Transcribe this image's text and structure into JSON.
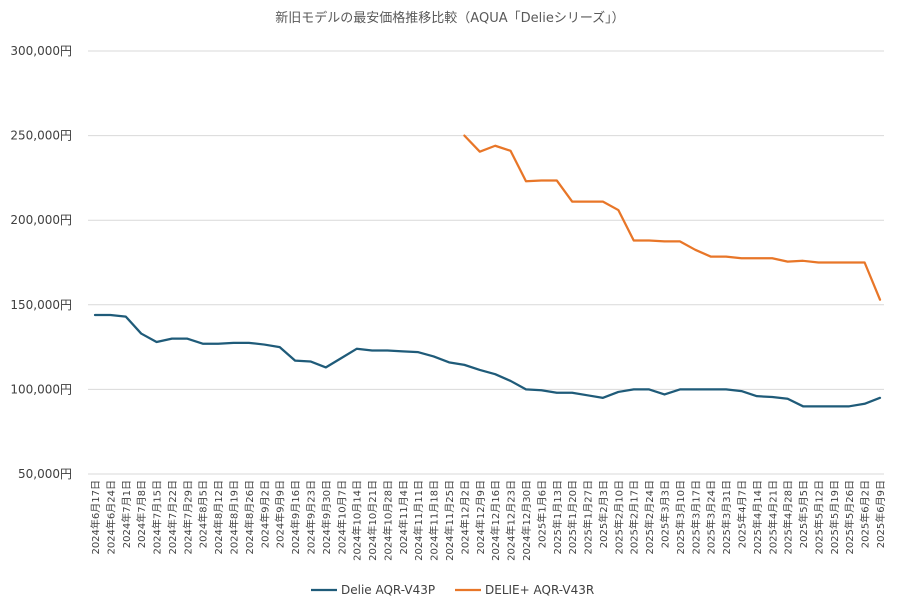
{
  "chart_data": {
    "type": "line",
    "title": "新旧モデルの最安価格推移比較（AQUA「Delieシリーズ」）",
    "ylim": [
      50000,
      300000
    ],
    "yticks": [
      50000,
      100000,
      150000,
      200000,
      250000,
      300000
    ],
    "ytick_labels": [
      "50,000円",
      "100,000円",
      "150,000円",
      "200,000円",
      "250,000円",
      "300,000円"
    ],
    "grid": true,
    "legend_position": "bottom",
    "categories": [
      "2024年6月17日",
      "2024年6月24日",
      "2024年7月1日",
      "2024年7月8日",
      "2024年7月15日",
      "2024年7月22日",
      "2024年7月29日",
      "2024年8月5日",
      "2024年8月12日",
      "2024年8月19日",
      "2024年8月26日",
      "2024年9月2日",
      "2024年9月9日",
      "2024年9月16日",
      "2024年9月23日",
      "2024年9月30日",
      "2024年10月7日",
      "2024年10月14日",
      "2024年10月21日",
      "2024年10月28日",
      "2024年11月4日",
      "2024年11月11日",
      "2024年11月18日",
      "2024年11月25日",
      "2024年12月2日",
      "2024年12月9日",
      "2024年12月16日",
      "2024年12月23日",
      "2024年12月30日",
      "2025年1月6日",
      "2025年1月13日",
      "2025年1月20日",
      "2025年1月27日",
      "2025年2月3日",
      "2025年2月10日",
      "2025年2月17日",
      "2025年2月24日",
      "2025年3月3日",
      "2025年3月10日",
      "2025年3月17日",
      "2025年3月24日",
      "2025年3月31日",
      "2025年4月7日",
      "2025年4月14日",
      "2025年4月21日",
      "2025年4月28日",
      "2025年5月5日",
      "2025年5月12日",
      "2025年5月19日",
      "2025年5月26日",
      "2025年6月2日",
      "2025年6月9日"
    ],
    "series": [
      {
        "name": "Delie AQR-V43P",
        "color": "#1f5b79",
        "values": [
          144000,
          144000,
          143000,
          133000,
          128000,
          130000,
          130000,
          127000,
          127000,
          127500,
          127500,
          126500,
          125000,
          117000,
          116500,
          113000,
          118500,
          124000,
          123000,
          123000,
          122500,
          122000,
          119500,
          116000,
          114500,
          111500,
          109000,
          105000,
          100000,
          99500,
          98000,
          98000,
          96500,
          95000,
          98500,
          100000,
          100000,
          97000,
          100000,
          100000,
          100000,
          100000,
          99000,
          96000,
          95500,
          94500,
          90000,
          90000,
          90000,
          90000,
          91500,
          95000
        ]
      },
      {
        "name": "DELIE+ AQR-V43R",
        "color": "#e87628",
        "values": [
          null,
          null,
          null,
          null,
          null,
          null,
          null,
          null,
          null,
          null,
          null,
          null,
          null,
          null,
          null,
          null,
          null,
          null,
          null,
          null,
          null,
          null,
          null,
          null,
          250000,
          240500,
          244000,
          241000,
          223000,
          223500,
          223500,
          211000,
          211000,
          211000,
          206000,
          188000,
          188000,
          187500,
          187500,
          182500,
          178500,
          178500,
          177500,
          177500,
          177500,
          175500,
          176000,
          175000,
          175000,
          175000,
          175000,
          153000
        ]
      }
    ]
  }
}
